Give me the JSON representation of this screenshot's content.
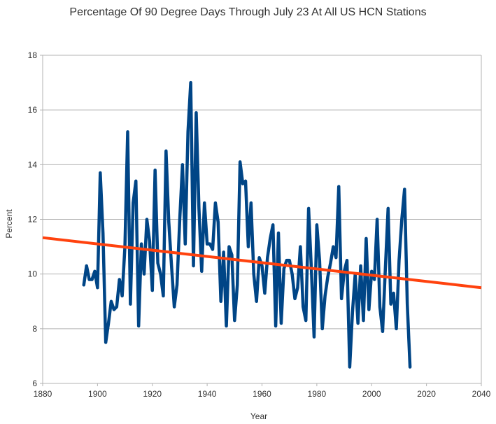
{
  "chart_data": {
    "type": "line",
    "title": "Percentage Of 90 Degree Days Through July 23 At All US HCN Stations",
    "xlabel": "Year",
    "ylabel": "Percent",
    "xlim": [
      1880,
      2040
    ],
    "ylim": [
      6,
      18
    ],
    "xticks": [
      1880,
      1900,
      1920,
      1940,
      1960,
      1980,
      2000,
      2020,
      2040
    ],
    "yticks": [
      6,
      8,
      10,
      12,
      14,
      16,
      18
    ],
    "grid": "horizontal",
    "legend": "none",
    "colors": {
      "series": "#004586",
      "trend": "#ff420e",
      "grid": "#b3b3b3",
      "axis": "#b3b3b3"
    },
    "series": [
      {
        "name": "Percent",
        "x": [
          1895,
          1896,
          1897,
          1898,
          1899,
          1900,
          1901,
          1902,
          1903,
          1904,
          1905,
          1906,
          1907,
          1908,
          1909,
          1910,
          1911,
          1912,
          1913,
          1914,
          1915,
          1916,
          1917,
          1918,
          1919,
          1920,
          1921,
          1922,
          1923,
          1924,
          1925,
          1926,
          1927,
          1928,
          1929,
          1930,
          1931,
          1932,
          1933,
          1934,
          1935,
          1936,
          1937,
          1938,
          1939,
          1940,
          1941,
          1942,
          1943,
          1944,
          1945,
          1946,
          1947,
          1948,
          1949,
          1950,
          1951,
          1952,
          1953,
          1954,
          1955,
          1956,
          1957,
          1958,
          1959,
          1960,
          1961,
          1962,
          1963,
          1964,
          1965,
          1966,
          1967,
          1968,
          1969,
          1970,
          1971,
          1972,
          1973,
          1974,
          1975,
          1976,
          1977,
          1978,
          1979,
          1980,
          1981,
          1982,
          1983,
          1984,
          1985,
          1986,
          1987,
          1988,
          1989,
          1990,
          1991,
          1992,
          1993,
          1994,
          1995,
          1996,
          1997,
          1998,
          1999,
          2000,
          2001,
          2002,
          2003,
          2004,
          2005,
          2006,
          2007,
          2008,
          2009,
          2010,
          2011,
          2012,
          2013,
          2014
        ],
        "values": [
          9.6,
          10.3,
          9.8,
          9.8,
          10.1,
          9.5,
          13.7,
          11.5,
          7.5,
          8.2,
          9.0,
          8.7,
          8.8,
          9.8,
          9.2,
          11.0,
          15.2,
          8.9,
          12.6,
          13.4,
          8.1,
          11.1,
          10.0,
          12.0,
          11.2,
          9.4,
          13.8,
          10.4,
          10.0,
          9.2,
          14.5,
          11.9,
          10.3,
          8.8,
          9.6,
          12.0,
          14.0,
          11.1,
          15.2,
          17.0,
          10.3,
          15.9,
          12.4,
          10.1,
          12.6,
          11.1,
          11.1,
          10.9,
          12.6,
          11.9,
          9.0,
          10.8,
          8.1,
          11.0,
          10.7,
          8.3,
          9.6,
          14.1,
          13.3,
          13.4,
          11.0,
          12.6,
          10.0,
          9.0,
          10.6,
          10.3,
          9.3,
          10.6,
          11.3,
          11.8,
          8.1,
          11.5,
          8.2,
          10.2,
          10.5,
          10.5,
          10.0,
          9.1,
          9.5,
          11.0,
          8.8,
          8.3,
          12.4,
          10.2,
          7.7,
          11.8,
          10.5,
          8.0,
          9.2,
          9.9,
          10.4,
          11.0,
          10.6,
          13.2,
          9.1,
          10.1,
          10.5,
          6.6,
          8.6,
          10.0,
          8.2,
          10.3,
          8.3,
          11.3,
          8.7,
          10.1,
          9.8,
          12.0,
          8.8,
          7.9,
          10.2,
          12.4,
          8.9,
          9.3,
          8.0,
          10.5,
          12.0,
          13.1,
          8.9,
          6.6
        ]
      },
      {
        "name": "Linear trend",
        "x": [
          1880,
          2040
        ],
        "values": [
          11.33,
          9.5
        ]
      }
    ]
  }
}
